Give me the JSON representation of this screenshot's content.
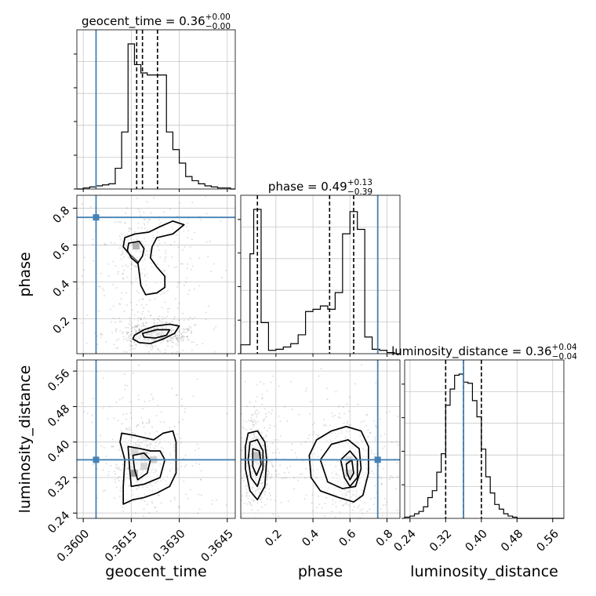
{
  "chart_data": {
    "type": "corner",
    "parameters": [
      "geocent_time",
      "phase",
      "luminosity_distance"
    ],
    "truths": {
      "geocent_time": 0.3604,
      "phase": 0.75,
      "luminosity_distance": 0.36
    },
    "truth_color": "#4682b4",
    "grid": true,
    "titles": [
      {
        "param": "geocent_time",
        "prefix": "geocent_time = 0.36",
        "plus": "+0.00",
        "minus": "−0.00"
      },
      {
        "param": "phase",
        "prefix": "phase = 0.49",
        "plus": "+0.13",
        "minus": "−0.39"
      },
      {
        "param": "luminosity_distance",
        "prefix": "luminosity_distance = 0.36",
        "plus": "+0.04",
        "minus": "−0.04"
      }
    ],
    "axis_labels": {
      "geocent_time": "geocent_time",
      "phase": "phase",
      "luminosity_distance": "luminosity_distance"
    },
    "ranges": {
      "geocent_time": [
        0.3598,
        0.36475
      ],
      "phase": [
        0.01,
        0.87
      ],
      "luminosity_distance": [
        0.228,
        0.585
      ]
    },
    "ticks": {
      "geocent_time": [
        "0.3600",
        "0.3615",
        "0.3630",
        "0.3645"
      ],
      "phase": [
        "0.2",
        "0.4",
        "0.6",
        "0.8"
      ],
      "luminosity_distance": [
        "0.24",
        "0.32",
        "0.40",
        "0.48",
        "0.56"
      ]
    },
    "quantiles": {
      "geocent_time": [
        0.36167,
        0.36185,
        0.36232
      ],
      "phase": [
        0.1,
        0.49,
        0.62
      ],
      "luminosity_distance": [
        0.32,
        0.36,
        0.4
      ]
    },
    "histograms": {
      "geocent_time": {
        "edges": [
          0.3598,
          0.36,
          0.3602,
          0.3604,
          0.3606,
          0.3608,
          0.361,
          0.3612,
          0.3614,
          0.3616,
          0.3618,
          0.362,
          0.3622,
          0.3624,
          0.3626,
          0.3628,
          0.363,
          0.3632,
          0.3634,
          0.3636,
          0.3638,
          0.364,
          0.3642,
          0.3644,
          0.3646,
          0.36475
        ],
        "counts": [
          0,
          1,
          2,
          3,
          4,
          5,
          20,
          55,
          140,
          120,
          112,
          110,
          110,
          110,
          55,
          38,
          25,
          12,
          8,
          5,
          3,
          2,
          1,
          1,
          0
        ]
      },
      "phase": {
        "edges": [
          0.01,
          0.04,
          0.06,
          0.08,
          0.1,
          0.12,
          0.14,
          0.16,
          0.18,
          0.2,
          0.22,
          0.24,
          0.26,
          0.28,
          0.3,
          0.32,
          0.34,
          0.36,
          0.38,
          0.4,
          0.42,
          0.44,
          0.46,
          0.48,
          0.5,
          0.52,
          0.54,
          0.56,
          0.58,
          0.6,
          0.62,
          0.64,
          0.66,
          0.68,
          0.7,
          0.72,
          0.74,
          0.76,
          0.78,
          0.8,
          0.82,
          0.84,
          0.87
        ],
        "counts": [
          8,
          8,
          90,
          130,
          130,
          28,
          28,
          3,
          3,
          4,
          4,
          6,
          6,
          9,
          9,
          17,
          17,
          38,
          38,
          40,
          40,
          43,
          43,
          40,
          40,
          55,
          55,
          108,
          108,
          128,
          128,
          112,
          112,
          15,
          15,
          4,
          4,
          3,
          3,
          1,
          1,
          0
        ]
      },
      "luminosity_distance": {
        "edges": [
          0.228,
          0.24,
          0.25,
          0.26,
          0.27,
          0.28,
          0.29,
          0.3,
          0.31,
          0.32,
          0.33,
          0.34,
          0.35,
          0.36,
          0.37,
          0.38,
          0.39,
          0.4,
          0.41,
          0.42,
          0.43,
          0.44,
          0.45,
          0.46,
          0.47,
          0.48,
          0.5,
          0.585
        ],
        "counts": [
          1,
          2,
          4,
          6,
          10,
          18,
          24,
          40,
          56,
          98,
          112,
          124,
          125,
          118,
          117,
          102,
          88,
          60,
          36,
          22,
          12,
          8,
          4,
          2,
          1,
          0,
          0
        ]
      }
    },
    "contours": {
      "geocent_time__phase": [
        [
          [
            0.36162,
            0.66
          ],
          [
            0.36205,
            0.67
          ],
          [
            0.3624,
            0.7
          ],
          [
            0.3628,
            0.73
          ],
          [
            0.36315,
            0.71
          ],
          [
            0.3628,
            0.66
          ],
          [
            0.3623,
            0.64
          ],
          [
            0.36215,
            0.59
          ],
          [
            0.3621,
            0.53
          ],
          [
            0.3623,
            0.48
          ],
          [
            0.36255,
            0.43
          ],
          [
            0.36255,
            0.37
          ],
          [
            0.3623,
            0.34
          ],
          [
            0.36195,
            0.33
          ],
          [
            0.3618,
            0.38
          ],
          [
            0.36175,
            0.45
          ],
          [
            0.3617,
            0.51
          ],
          [
            0.36145,
            0.55
          ],
          [
            0.36125,
            0.59
          ],
          [
            0.3613,
            0.64
          ]
        ],
        [
          [
            0.36142,
            0.61
          ],
          [
            0.36175,
            0.62
          ],
          [
            0.3619,
            0.58
          ],
          [
            0.36185,
            0.54
          ],
          [
            0.3617,
            0.5
          ],
          [
            0.3615,
            0.53
          ],
          [
            0.36138,
            0.57
          ]
        ],
        [
          [
            0.3616,
            0.11
          ],
          [
            0.3619,
            0.14
          ],
          [
            0.36225,
            0.16
          ],
          [
            0.3627,
            0.17
          ],
          [
            0.363,
            0.16
          ],
          [
            0.36285,
            0.12
          ],
          [
            0.3625,
            0.09
          ],
          [
            0.3621,
            0.065
          ],
          [
            0.36175,
            0.07
          ],
          [
            0.36155,
            0.09
          ]
        ],
        [
          [
            0.36185,
            0.12
          ],
          [
            0.3623,
            0.14
          ],
          [
            0.3627,
            0.14
          ],
          [
            0.3626,
            0.11
          ],
          [
            0.36225,
            0.095
          ],
          [
            0.3619,
            0.1
          ]
        ]
      ],
      "geocent_time__luminosity_distance": [
        [
          [
            0.3612,
            0.42
          ],
          [
            0.3616,
            0.415
          ],
          [
            0.3619,
            0.41
          ],
          [
            0.3622,
            0.405
          ],
          [
            0.3625,
            0.42
          ],
          [
            0.3628,
            0.425
          ],
          [
            0.3629,
            0.4
          ],
          [
            0.3629,
            0.33
          ],
          [
            0.3627,
            0.3
          ],
          [
            0.3623,
            0.285
          ],
          [
            0.3619,
            0.275
          ],
          [
            0.36155,
            0.27
          ],
          [
            0.36125,
            0.26
          ],
          [
            0.36125,
            0.3
          ],
          [
            0.3613,
            0.36
          ],
          [
            0.36115,
            0.4
          ]
        ],
        [
          [
            0.3614,
            0.39
          ],
          [
            0.3618,
            0.385
          ],
          [
            0.3621,
            0.38
          ],
          [
            0.3624,
            0.38
          ],
          [
            0.36255,
            0.36
          ],
          [
            0.3624,
            0.32
          ],
          [
            0.3619,
            0.305
          ],
          [
            0.3615,
            0.3
          ],
          [
            0.36145,
            0.34
          ]
        ],
        [
          [
            0.36155,
            0.37
          ],
          [
            0.3619,
            0.375
          ],
          [
            0.3621,
            0.36
          ],
          [
            0.362,
            0.33
          ],
          [
            0.3617,
            0.315
          ],
          [
            0.3616,
            0.34
          ]
        ]
      ],
      "phase__luminosity_distance": [
        [
          [
            0.05,
            0.42
          ],
          [
            0.1,
            0.425
          ],
          [
            0.14,
            0.4
          ],
          [
            0.15,
            0.36
          ],
          [
            0.14,
            0.3
          ],
          [
            0.1,
            0.27
          ],
          [
            0.06,
            0.29
          ],
          [
            0.035,
            0.34
          ],
          [
            0.035,
            0.39
          ]
        ],
        [
          [
            0.06,
            0.4
          ],
          [
            0.1,
            0.405
          ],
          [
            0.13,
            0.38
          ],
          [
            0.13,
            0.34
          ],
          [
            0.1,
            0.3
          ],
          [
            0.065,
            0.32
          ],
          [
            0.05,
            0.36
          ]
        ],
        [
          [
            0.075,
            0.385
          ],
          [
            0.11,
            0.38
          ],
          [
            0.12,
            0.35
          ],
          [
            0.095,
            0.325
          ],
          [
            0.075,
            0.345
          ]
        ],
        [
          [
            0.38,
            0.37
          ],
          [
            0.42,
            0.405
          ],
          [
            0.5,
            0.425
          ],
          [
            0.58,
            0.435
          ],
          [
            0.66,
            0.425
          ],
          [
            0.7,
            0.39
          ],
          [
            0.7,
            0.33
          ],
          [
            0.67,
            0.28
          ],
          [
            0.62,
            0.265
          ],
          [
            0.54,
            0.275
          ],
          [
            0.44,
            0.29
          ],
          [
            0.39,
            0.32
          ]
        ],
        [
          [
            0.44,
            0.36
          ],
          [
            0.5,
            0.395
          ],
          [
            0.59,
            0.405
          ],
          [
            0.65,
            0.385
          ],
          [
            0.66,
            0.34
          ],
          [
            0.63,
            0.3
          ],
          [
            0.56,
            0.295
          ],
          [
            0.48,
            0.31
          ]
        ],
        [
          [
            0.55,
            0.36
          ],
          [
            0.6,
            0.38
          ],
          [
            0.64,
            0.36
          ],
          [
            0.64,
            0.32
          ],
          [
            0.6,
            0.3
          ],
          [
            0.57,
            0.32
          ]
        ],
        [
          [
            0.58,
            0.35
          ],
          [
            0.61,
            0.36
          ],
          [
            0.62,
            0.33
          ],
          [
            0.6,
            0.315
          ],
          [
            0.585,
            0.33
          ]
        ]
      ]
    },
    "density_blocks": {
      "geocent_time__phase": [
        [
          0.36165,
          0.595,
          0.7
        ]
      ],
      "geocent_time__luminosity_distance": [
        [
          0.3616,
          0.38,
          0.35
        ],
        [
          0.3619,
          0.37,
          0.45
        ],
        [
          0.3616,
          0.33,
          0.9
        ],
        [
          0.3619,
          0.345,
          0.55
        ],
        [
          0.3622,
          0.36,
          0.4
        ]
      ],
      "phase__luminosity_distance": [
        [
          0.1,
          0.37,
          0.9
        ],
        [
          0.595,
          0.33,
          0.75
        ],
        [
          0.595,
          0.36,
          0.45
        ]
      ]
    }
  }
}
